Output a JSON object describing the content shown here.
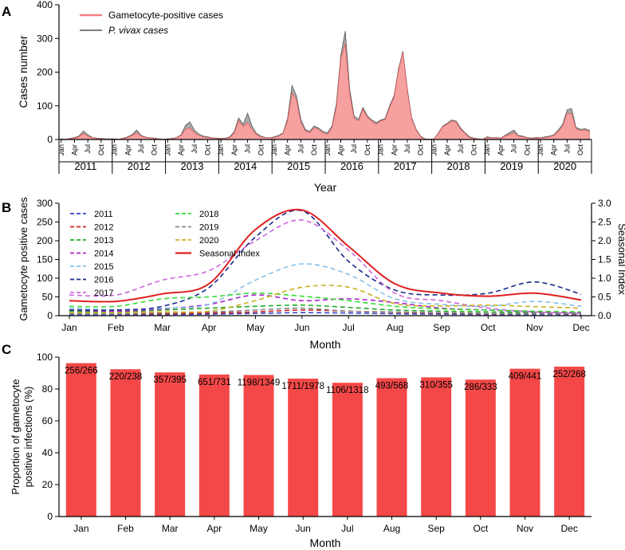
{
  "chart_data": [
    {
      "panel": "A",
      "type": "area",
      "ylabel": "Cases number",
      "xlabel": "Year",
      "ylim": [
        0,
        400
      ],
      "yticks": [
        0,
        100,
        200,
        300,
        400
      ],
      "years": [
        "2011",
        "2012",
        "2013",
        "2014",
        "2015",
        "2016",
        "2017",
        "2018",
        "2019",
        "2020"
      ],
      "month_ticks": [
        "Jan",
        "Apr",
        "Jul",
        "Oct"
      ],
      "legend": {
        "position": "top-left"
      },
      "series": [
        {
          "name": "P. vivax cases",
          "color": "#aaaaaa",
          "values": [
            2,
            1,
            3,
            6,
            10,
            25,
            14,
            6,
            4,
            3,
            2,
            2,
            2,
            1,
            4,
            8,
            15,
            28,
            12,
            7,
            5,
            4,
            2,
            1,
            2,
            3,
            6,
            14,
            42,
            52,
            28,
            16,
            10,
            8,
            5,
            4,
            3,
            4,
            8,
            24,
            64,
            45,
            78,
            40,
            18,
            10,
            6,
            5,
            8,
            12,
            20,
            62,
            160,
            130,
            60,
            30,
            24,
            40,
            34,
            24,
            20,
            40,
            105,
            250,
            322,
            150,
            70,
            60,
            95,
            70,
            58,
            50,
            58,
            62,
            100,
            130,
            210,
            262,
            150,
            64,
            30,
            10,
            2,
            1,
            2,
            20,
            40,
            48,
            58,
            55,
            34,
            20,
            8,
            4,
            2,
            1,
            8,
            5,
            6,
            4,
            12,
            20,
            28,
            12,
            10,
            6,
            4,
            6,
            5,
            8,
            10,
            14,
            28,
            45,
            88,
            92,
            36,
            30,
            32,
            28
          ]
        },
        {
          "name": "Gametocyte-positive cases",
          "color": "#f7a0a0",
          "values": [
            1,
            1,
            2,
            4,
            8,
            18,
            10,
            5,
            3,
            2,
            1,
            1,
            1,
            1,
            3,
            6,
            12,
            20,
            10,
            6,
            4,
            3,
            1,
            1,
            1,
            2,
            5,
            12,
            30,
            35,
            20,
            12,
            8,
            6,
            4,
            3,
            2,
            3,
            6,
            20,
            56,
            38,
            50,
            30,
            14,
            8,
            5,
            4,
            6,
            10,
            18,
            55,
            138,
            118,
            50,
            25,
            20,
            35,
            30,
            20,
            15,
            35,
            95,
            240,
            285,
            135,
            62,
            55,
            90,
            65,
            55,
            45,
            55,
            58,
            95,
            125,
            205,
            258,
            145,
            60,
            28,
            8,
            1,
            1,
            2,
            18,
            38,
            45,
            55,
            52,
            30,
            18,
            6,
            3,
            1,
            1,
            6,
            4,
            5,
            3,
            10,
            15,
            20,
            10,
            8,
            5,
            3,
            4,
            4,
            6,
            8,
            12,
            24,
            40,
            78,
            76,
            32,
            26,
            28,
            24
          ]
        }
      ]
    },
    {
      "panel": "B",
      "type": "line",
      "xlabel": "Month",
      "ylabel": "Gametocyte positive cases",
      "y2label": "Seasonal Index",
      "categories": [
        "Jan",
        "Feb",
        "Mar",
        "Apr",
        "May",
        "Jun",
        "Jul",
        "Aug",
        "Sep",
        "Oct",
        "Nov",
        "Dec"
      ],
      "ylim": [
        0,
        300
      ],
      "yticks": [
        0,
        50,
        100,
        150,
        200,
        250,
        300
      ],
      "y2lim": [
        0,
        3.0
      ],
      "y2ticks": [
        "0.0",
        "0.5",
        "1.0",
        "1.5",
        "2.0",
        "2.5",
        "3.0"
      ],
      "legend": {
        "position": "top-left"
      },
      "series": [
        {
          "name": "2011",
          "color": "#3344cc",
          "values": [
            3,
            3,
            3,
            4,
            6,
            8,
            7,
            5,
            4,
            3,
            3,
            3
          ]
        },
        {
          "name": "2012",
          "color": "#cc2222",
          "values": [
            6,
            5,
            5,
            7,
            10,
            15,
            12,
            9,
            7,
            5,
            5,
            4
          ]
        },
        {
          "name": "2013",
          "color": "#22aa22",
          "values": [
            12,
            10,
            15,
            20,
            25,
            28,
            22,
            15,
            12,
            10,
            8,
            7
          ]
        },
        {
          "name": "2014",
          "color": "#aa22cc",
          "values": [
            15,
            12,
            18,
            30,
            55,
            40,
            45,
            35,
            20,
            15,
            10,
            8
          ]
        },
        {
          "name": "2015",
          "color": "#88c0e8",
          "values": [
            20,
            15,
            20,
            30,
            95,
            138,
            110,
            45,
            30,
            25,
            38,
            25
          ]
        },
        {
          "name": "2016",
          "color": "#1a2a8a",
          "values": [
            15,
            15,
            25,
            75,
            210,
            280,
            145,
            68,
            55,
            60,
            90,
            57
          ]
        },
        {
          "name": "2017",
          "color": "#cc66dd",
          "values": [
            55,
            55,
            95,
            120,
            200,
            255,
            175,
            60,
            40,
            20,
            10,
            5
          ]
        },
        {
          "name": "2018",
          "color": "#33dd33",
          "values": [
            25,
            25,
            45,
            50,
            60,
            52,
            40,
            25,
            18,
            15,
            12,
            10
          ]
        },
        {
          "name": "2019",
          "color": "#888888",
          "values": [
            5,
            5,
            8,
            10,
            15,
            20,
            12,
            10,
            8,
            6,
            5,
            5
          ]
        },
        {
          "name": "2020",
          "color": "#c8b020",
          "values": [
            8,
            8,
            10,
            12,
            40,
            76,
            76,
            32,
            26,
            28,
            24,
            20
          ]
        }
      ],
      "seasonal_index": {
        "name": "Seasonal Index",
        "color": "#e02020",
        "values": [
          0.4,
          0.38,
          0.58,
          0.85,
          2.3,
          2.82,
          1.85,
          0.85,
          0.6,
          0.52,
          0.6,
          0.42
        ]
      }
    },
    {
      "panel": "C",
      "type": "bar",
      "xlabel": "Month",
      "ylabel_lines": [
        "Proportion of gametocyte",
        "positive infections (%)"
      ],
      "categories": [
        "Jan",
        "Feb",
        "Mar",
        "Apr",
        "May",
        "Jun",
        "Jul",
        "Aug",
        "Sep",
        "Oct",
        "Nov",
        "Dec"
      ],
      "ylim": [
        0,
        100
      ],
      "yticks": [
        0,
        20,
        40,
        60,
        80,
        100
      ],
      "color": "#f44848",
      "values": [
        96.2,
        92.4,
        90.4,
        89.1,
        88.8,
        86.5,
        83.9,
        86.8,
        87.3,
        85.9,
        92.7,
        94.0
      ],
      "labels": [
        "256/266",
        "220/238",
        "357/395",
        "651/731",
        "1198/1349",
        "1711/1978",
        "1106/1318",
        "493/568",
        "310/355",
        "286/333",
        "409/441",
        "252/268"
      ]
    }
  ],
  "panel_letters": {
    "a": "A",
    "b": "B",
    "c": "C"
  }
}
